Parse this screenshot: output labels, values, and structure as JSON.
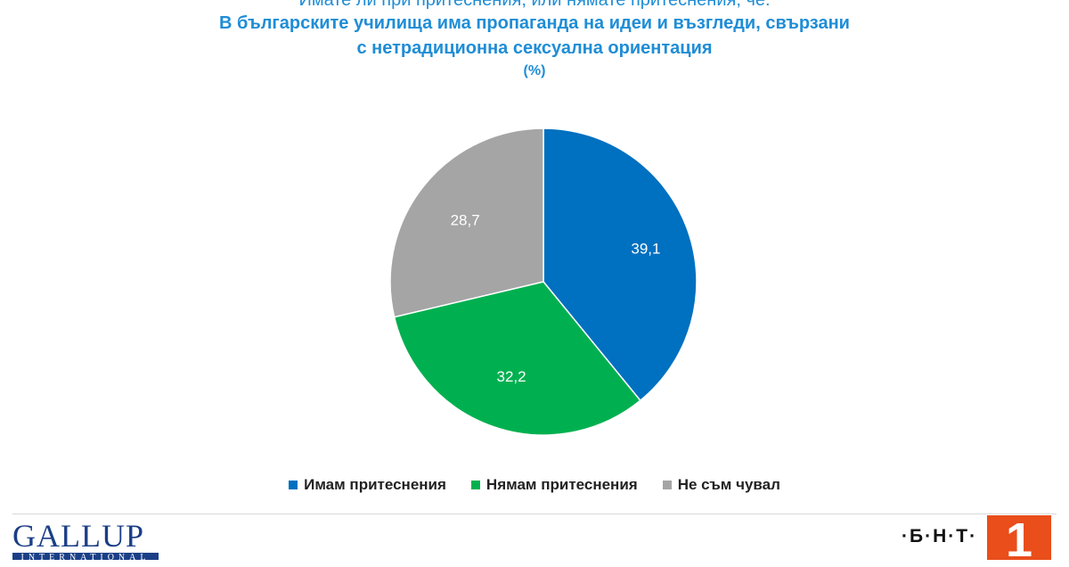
{
  "header": {
    "question": "Имате ли при притеснения, или нямате притеснения, че:",
    "title": "В българските училища има пропаганда на идеи и възгледи, свързани с нетрадиционна сексуална ориентация",
    "unit": "(%)"
  },
  "chart_data": {
    "type": "pie",
    "title": "В българските училища има пропаганда на идеи и възгледи, свързани с нетрадиционна сексуална ориентация",
    "subtitle": "(%)",
    "categories": [
      "Имам притеснения",
      "Нямам притеснения",
      "Не съм чувал"
    ],
    "values": [
      39.1,
      32.2,
      28.7
    ],
    "labels": [
      "39,1",
      "32,2",
      "28,7"
    ],
    "colors": [
      "#0070c0",
      "#00b050",
      "#a5a5a5"
    ],
    "start_angle": "12 o'clock, clockwise",
    "legend": "bottom-center"
  },
  "logos": {
    "gallup": "GALLUP",
    "gallup_sub": "INTERNATIONAL",
    "bnt": "·Б·Н·Т·",
    "bnt_number": "1"
  }
}
